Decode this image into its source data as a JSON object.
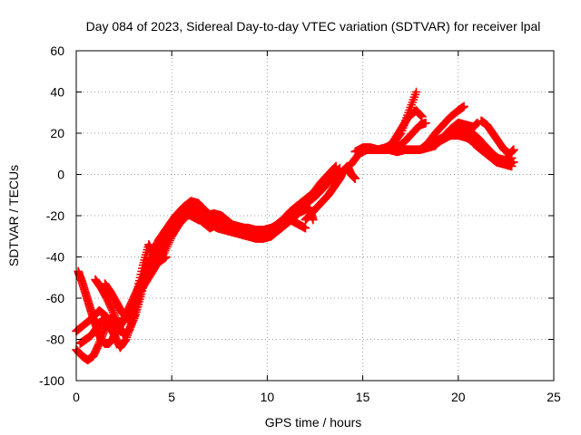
{
  "chart_data": {
    "type": "scatter",
    "title": "Day 084 of 2023, Sidereal Day-to-day VTEC variation (SDTVAR) for receiver lpal",
    "xlabel": "GPS time / hours",
    "ylabel": "SDTVAR / TECUs",
    "xlim": [
      0,
      25
    ],
    "ylim": [
      -100,
      60
    ],
    "x_ticks": [
      0,
      5,
      10,
      15,
      20,
      25
    ],
    "y_ticks": [
      -100,
      -80,
      -60,
      -40,
      -20,
      0,
      20,
      40,
      60
    ],
    "x_tick_labels": [
      "0",
      "5",
      "10",
      "15",
      "20",
      "25"
    ],
    "y_tick_labels": [
      "-100",
      "-80",
      "-60",
      "-40",
      "-20",
      "0",
      "20",
      "40",
      "60"
    ],
    "grid": true,
    "legend": "none",
    "marker": "plus",
    "color": "#ff0000",
    "series": [
      {
        "values": [
          [
            0.0,
            -76
          ],
          [
            0.4,
            -73
          ],
          [
            0.8,
            -70
          ],
          [
            1.2,
            -66
          ],
          [
            1.6,
            -69
          ],
          [
            2.0,
            -74
          ],
          [
            2.4,
            -72
          ],
          [
            2.8,
            -68
          ],
          [
            3.2,
            -58
          ],
          [
            3.6,
            -48
          ],
          [
            4.0,
            -43
          ],
          [
            4.4,
            -38
          ],
          [
            4.8,
            -30
          ],
          [
            5.2,
            -22
          ],
          [
            5.6,
            -16
          ],
          [
            6.0,
            -13
          ],
          [
            6.4,
            -14
          ],
          [
            6.8,
            -18
          ],
          [
            7.2,
            -21
          ],
          [
            7.6,
            -23
          ],
          [
            8.0,
            -24
          ],
          [
            8.4,
            -25
          ],
          [
            8.8,
            -26
          ],
          [
            9.2,
            -27
          ],
          [
            9.6,
            -28
          ],
          [
            10.0,
            -28
          ],
          [
            10.4,
            -25
          ],
          [
            10.8,
            -22
          ],
          [
            11.2,
            -18
          ],
          [
            11.6,
            -15
          ],
          [
            12.0,
            -12
          ],
          [
            12.4,
            -9
          ],
          [
            12.8,
            -4
          ],
          [
            13.2,
            0
          ],
          [
            13.6,
            4
          ]
        ]
      },
      {
        "values": [
          [
            0.0,
            -85
          ],
          [
            0.3,
            -88
          ],
          [
            0.6,
            -90
          ],
          [
            0.9,
            -88
          ],
          [
            1.2,
            -82
          ],
          [
            1.5,
            -75
          ],
          [
            1.8,
            -70
          ],
          [
            2.2,
            -72
          ],
          [
            2.6,
            -70
          ],
          [
            3.0,
            -64
          ],
          [
            3.4,
            -56
          ],
          [
            3.8,
            -50
          ],
          [
            4.2,
            -44
          ],
          [
            4.6,
            -38
          ],
          [
            5.0,
            -30
          ],
          [
            5.4,
            -24
          ],
          [
            5.8,
            -20
          ],
          [
            6.2,
            -18
          ],
          [
            6.6,
            -20
          ],
          [
            7.0,
            -24
          ],
          [
            7.4,
            -26
          ],
          [
            7.8,
            -27
          ],
          [
            8.2,
            -28
          ],
          [
            8.6,
            -29
          ],
          [
            9.0,
            -30
          ],
          [
            9.4,
            -31
          ],
          [
            9.8,
            -31
          ],
          [
            10.2,
            -30
          ],
          [
            10.6,
            -27
          ],
          [
            11.0,
            -24
          ],
          [
            11.4,
            -21
          ],
          [
            11.8,
            -17
          ],
          [
            12.2,
            -13
          ],
          [
            12.6,
            -10
          ],
          [
            13.0,
            -6
          ],
          [
            13.4,
            -2
          ],
          [
            13.8,
            3
          ]
        ]
      },
      {
        "values": [
          [
            0.1,
            -47
          ],
          [
            0.3,
            -52
          ],
          [
            0.5,
            -58
          ],
          [
            0.7,
            -64
          ],
          [
            0.9,
            -70
          ],
          [
            1.1,
            -75
          ],
          [
            1.3,
            -80
          ],
          [
            1.5,
            -82
          ],
          [
            1.7,
            -82
          ],
          [
            1.9,
            -80
          ],
          [
            2.1,
            -76
          ],
          [
            2.4,
            -72
          ],
          [
            2.7,
            -66
          ],
          [
            3.0,
            -60
          ],
          [
            3.3,
            -54
          ],
          [
            3.6,
            -48
          ],
          [
            3.9,
            -42
          ],
          [
            4.2,
            -36
          ],
          [
            4.5,
            -30
          ],
          [
            4.8,
            -26
          ],
          [
            5.1,
            -22
          ],
          [
            5.4,
            -20
          ],
          [
            5.7,
            -19
          ],
          [
            6.0,
            -20
          ],
          [
            6.4,
            -22
          ],
          [
            6.8,
            -23
          ],
          [
            7.2,
            -24
          ],
          [
            7.6,
            -26
          ],
          [
            8.0,
            -27
          ],
          [
            8.4,
            -28
          ],
          [
            8.8,
            -29
          ],
          [
            9.2,
            -30
          ],
          [
            9.6,
            -30
          ]
        ]
      },
      {
        "values": [
          [
            1.0,
            -51
          ],
          [
            1.3,
            -55
          ],
          [
            1.6,
            -60
          ],
          [
            1.9,
            -66
          ],
          [
            2.2,
            -73
          ],
          [
            2.5,
            -78
          ],
          [
            2.8,
            -75
          ],
          [
            3.1,
            -68
          ],
          [
            3.4,
            -58
          ],
          [
            3.7,
            -46
          ],
          [
            4.0,
            -38
          ],
          [
            4.3,
            -32
          ],
          [
            4.6,
            -28
          ],
          [
            4.9,
            -24
          ],
          [
            5.2,
            -20
          ],
          [
            5.6,
            -16
          ],
          [
            6.0,
            -15
          ],
          [
            6.4,
            -17
          ],
          [
            6.8,
            -20
          ],
          [
            7.2,
            -19
          ],
          [
            7.6,
            -20
          ],
          [
            8.0,
            -23
          ],
          [
            8.4,
            -26
          ],
          [
            8.8,
            -28
          ],
          [
            9.2,
            -28
          ],
          [
            9.6,
            -29
          ],
          [
            10.0,
            -27
          ],
          [
            10.4,
            -26
          ],
          [
            10.8,
            -23
          ],
          [
            11.2,
            -22
          ],
          [
            11.6,
            -24
          ],
          [
            12.0,
            -26
          ]
        ]
      },
      {
        "values": [
          [
            1.5,
            -53
          ],
          [
            1.8,
            -57
          ],
          [
            2.1,
            -62
          ],
          [
            2.4,
            -67
          ],
          [
            2.7,
            -70
          ],
          [
            3.0,
            -66
          ],
          [
            3.2,
            -56
          ],
          [
            3.5,
            -44
          ],
          [
            3.8,
            -34
          ],
          [
            4.0,
            -38
          ],
          [
            4.3,
            -42
          ],
          [
            4.6,
            -36
          ],
          [
            4.9,
            -28
          ],
          [
            5.2,
            -22
          ],
          [
            5.5,
            -18
          ],
          [
            5.8,
            -16
          ],
          [
            6.2,
            -19
          ],
          [
            6.6,
            -23
          ],
          [
            7.0,
            -26
          ],
          [
            7.4,
            -24
          ],
          [
            7.8,
            -22
          ],
          [
            8.2,
            -25
          ],
          [
            8.6,
            -26
          ],
          [
            9.0,
            -26
          ],
          [
            9.4,
            -27
          ],
          [
            9.8,
            -27
          ],
          [
            10.2,
            -26
          ],
          [
            10.6,
            -24
          ],
          [
            11.0,
            -21
          ],
          [
            11.4,
            -19
          ],
          [
            11.8,
            -18
          ],
          [
            12.2,
            -16
          ],
          [
            12.4,
            -22
          ]
        ]
      },
      {
        "values": [
          [
            0.2,
            -82
          ],
          [
            0.5,
            -80
          ],
          [
            0.8,
            -78
          ],
          [
            1.1,
            -74
          ],
          [
            1.4,
            -70
          ],
          [
            1.7,
            -73
          ],
          [
            2.0,
            -78
          ],
          [
            2.3,
            -84
          ],
          [
            2.6,
            -80
          ],
          [
            2.9,
            -72
          ],
          [
            3.2,
            -62
          ],
          [
            3.5,
            -52
          ],
          [
            3.8,
            -46
          ],
          [
            4.1,
            -44
          ],
          [
            4.4,
            -42
          ],
          [
            4.7,
            -40
          ]
        ]
      },
      {
        "values": [
          [
            12.0,
            -22
          ],
          [
            12.3,
            -19
          ],
          [
            12.6,
            -16
          ],
          [
            12.9,
            -13
          ],
          [
            13.2,
            -10
          ],
          [
            13.5,
            -6
          ],
          [
            13.8,
            -2
          ],
          [
            14.0,
            2
          ],
          [
            14.4,
            5
          ],
          [
            14.8,
            10
          ],
          [
            15.2,
            12
          ],
          [
            15.6,
            12
          ],
          [
            16.0,
            12
          ],
          [
            16.4,
            12
          ],
          [
            16.8,
            11
          ],
          [
            17.2,
            12
          ],
          [
            17.6,
            12
          ],
          [
            18.0,
            12
          ],
          [
            18.4,
            13
          ],
          [
            18.8,
            14
          ]
        ]
      },
      {
        "values": [
          [
            14.0,
            2
          ],
          [
            14.2,
            4
          ],
          [
            14.4,
            0
          ],
          [
            14.6,
            -2
          ]
        ]
      },
      {
        "values": [
          [
            14.6,
            11
          ],
          [
            15.0,
            13
          ],
          [
            15.4,
            13
          ],
          [
            15.8,
            12
          ],
          [
            16.2,
            13
          ],
          [
            16.6,
            15
          ],
          [
            17.0,
            20
          ],
          [
            17.4,
            30
          ],
          [
            17.8,
            40
          ]
        ]
      },
      {
        "values": [
          [
            16.2,
            12
          ],
          [
            16.6,
            16
          ],
          [
            17.0,
            22
          ],
          [
            17.4,
            28
          ],
          [
            17.8,
            31
          ],
          [
            18.1,
            28
          ]
        ]
      },
      {
        "values": [
          [
            16.8,
            13
          ],
          [
            17.2,
            16
          ],
          [
            17.6,
            20
          ],
          [
            18.0,
            24
          ],
          [
            18.3,
            25
          ]
        ]
      },
      {
        "values": [
          [
            18.0,
            12
          ],
          [
            18.4,
            15
          ],
          [
            18.8,
            20
          ],
          [
            19.2,
            24
          ],
          [
            19.6,
            28
          ],
          [
            20.0,
            31
          ],
          [
            20.3,
            33
          ]
        ]
      },
      {
        "values": [
          [
            18.8,
            14
          ],
          [
            19.2,
            18
          ],
          [
            19.6,
            22
          ],
          [
            20.0,
            25
          ],
          [
            20.4,
            24
          ],
          [
            20.8,
            23
          ],
          [
            21.0,
            25
          ]
        ]
      },
      {
        "values": [
          [
            18.4,
            14
          ],
          [
            18.8,
            16
          ],
          [
            19.2,
            18
          ],
          [
            19.6,
            19
          ],
          [
            20.0,
            19
          ],
          [
            20.4,
            18
          ],
          [
            20.8,
            16
          ],
          [
            21.2,
            13
          ],
          [
            21.6,
            10
          ],
          [
            22.0,
            8
          ],
          [
            22.4,
            7
          ],
          [
            22.8,
            8
          ]
        ]
      },
      {
        "values": [
          [
            19.0,
            16
          ],
          [
            19.4,
            18
          ],
          [
            19.8,
            20
          ],
          [
            20.2,
            22
          ],
          [
            20.6,
            21
          ],
          [
            21.0,
            18
          ],
          [
            21.4,
            14
          ],
          [
            21.8,
            10
          ],
          [
            22.2,
            7
          ],
          [
            22.6,
            5
          ]
        ]
      },
      {
        "values": [
          [
            20.2,
            23
          ],
          [
            20.6,
            20
          ],
          [
            21.0,
            17
          ],
          [
            21.4,
            13
          ],
          [
            21.8,
            9
          ],
          [
            22.2,
            6
          ],
          [
            22.6,
            5
          ],
          [
            22.9,
            6
          ]
        ]
      },
      {
        "values": [
          [
            21.2,
            26
          ],
          [
            21.5,
            24
          ],
          [
            21.8,
            20
          ],
          [
            22.1,
            16
          ],
          [
            22.4,
            12
          ],
          [
            22.7,
            10
          ],
          [
            22.9,
            12
          ]
        ]
      },
      {
        "values": [
          [
            20.8,
            15
          ],
          [
            21.2,
            12
          ],
          [
            21.6,
            9
          ],
          [
            22.0,
            6
          ],
          [
            22.4,
            5
          ],
          [
            22.8,
            4
          ]
        ]
      }
    ]
  }
}
